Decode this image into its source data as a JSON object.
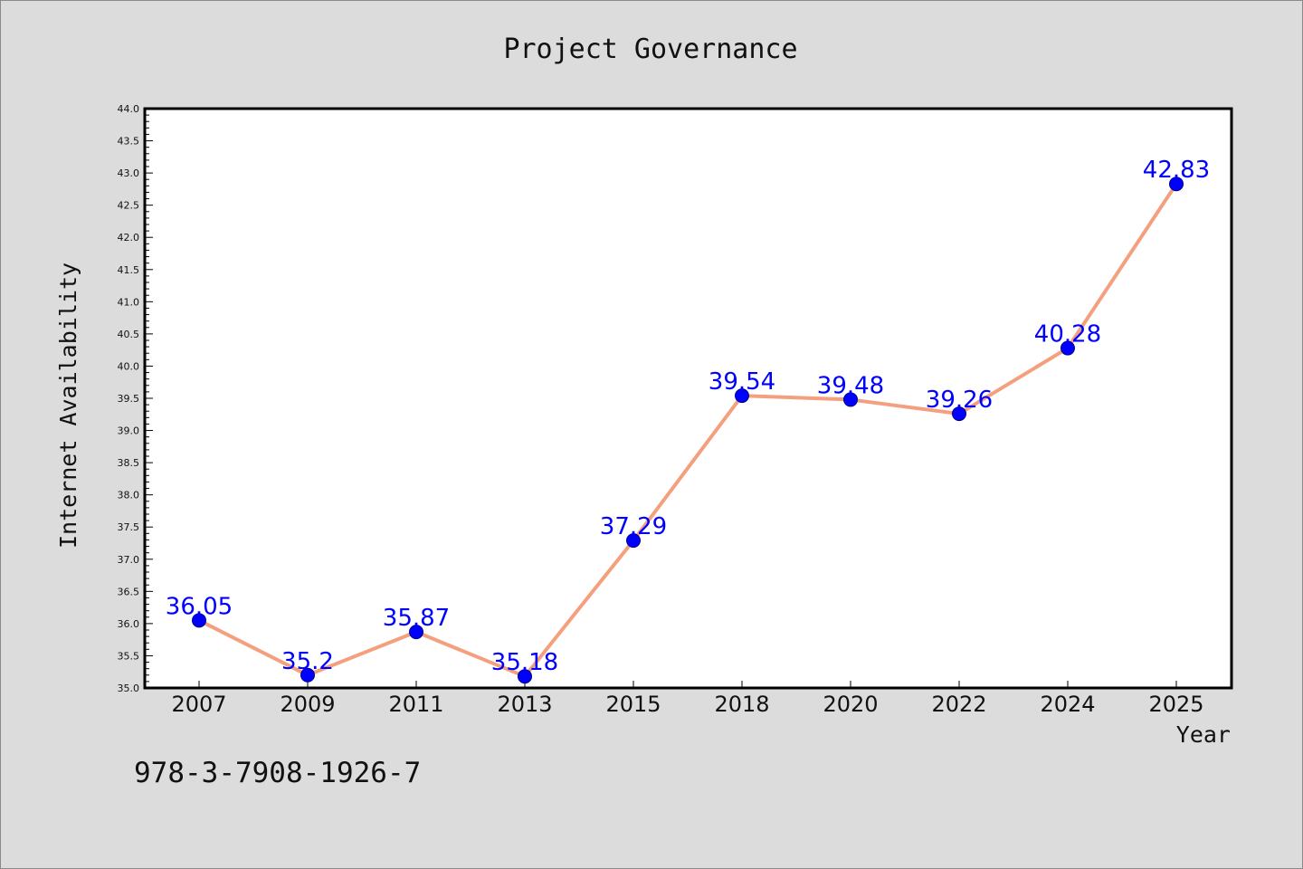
{
  "chart_data": {
    "type": "line",
    "title": "Project Governance",
    "xlabel": "Year",
    "ylabel": "Internet Availability",
    "categories": [
      "2007",
      "2009",
      "2011",
      "2013",
      "2015",
      "2018",
      "2020",
      "2022",
      "2024",
      "2025"
    ],
    "series": [
      {
        "values": [
          36.05,
          35.2,
          35.87,
          35.18,
          37.29,
          39.54,
          39.48,
          39.26,
          40.28,
          42.83
        ],
        "labels": [
          "36.05",
          "35.2",
          "35.87",
          "35.18",
          "37.29",
          "39.54",
          "39.48",
          "39.26",
          "40.28",
          "42.83"
        ]
      }
    ],
    "ylim": [
      35.0,
      44.0
    ],
    "yticks": [
      "35.0",
      "35.5",
      "36.0",
      "36.5",
      "37.0",
      "37.5",
      "38.0",
      "38.5",
      "39.0",
      "39.5",
      "40.0",
      "40.5",
      "41.0",
      "41.5",
      "42.0",
      "42.5",
      "43.0",
      "43.5",
      "44.0"
    ],
    "grid": false,
    "colors": {
      "line": "#f4a07e",
      "marker": "#0000ff",
      "label": "#0000ff",
      "plot_bg": "#ffffff",
      "page_bg": "#dcdcdc"
    }
  },
  "footer": {
    "isbn": "978-3-7908-1926-7"
  }
}
